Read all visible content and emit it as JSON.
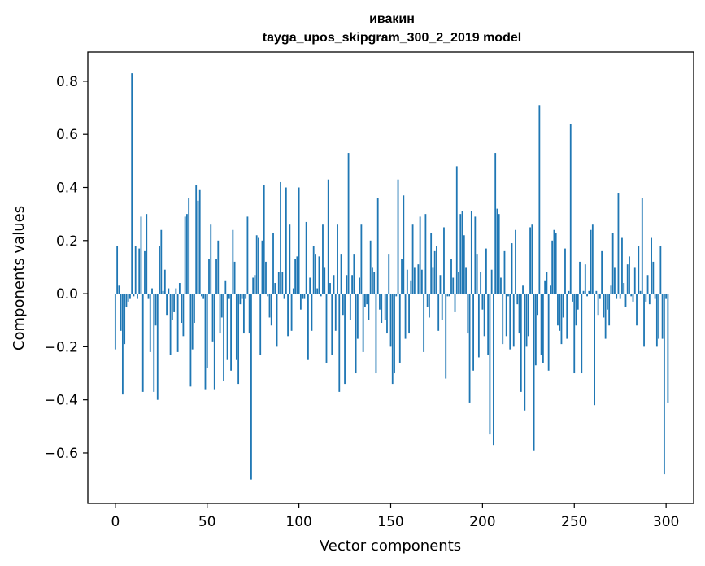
{
  "chart_data": {
    "type": "bar",
    "title": "ивакин",
    "subtitle": "tayga_upos_skipgram_300_2_2019 model",
    "xlabel": "Vector components",
    "ylabel": "Components values",
    "xlim": [
      -15,
      315
    ],
    "ylim": [
      -0.79,
      0.91
    ],
    "xticks": [
      0,
      50,
      100,
      150,
      200,
      250,
      300
    ],
    "xtick_labels": [
      "0",
      "50",
      "100",
      "150",
      "200",
      "250",
      "300"
    ],
    "yticks": [
      -0.6,
      -0.4,
      -0.2,
      0.0,
      0.2,
      0.4,
      0.6,
      0.8
    ],
    "ytick_labels": [
      "−0.6",
      "−0.4",
      "−0.2",
      "0.0",
      "0.2",
      "0.4",
      "0.6",
      "0.8"
    ],
    "bar_color": "#1f77b4",
    "values": [
      -0.21,
      0.18,
      0.03,
      -0.14,
      -0.38,
      -0.19,
      -0.05,
      -0.03,
      -0.02,
      0.83,
      -0.01,
      0.18,
      -0.02,
      0.17,
      0.29,
      -0.37,
      0.16,
      0.3,
      -0.02,
      -0.22,
      0.02,
      -0.37,
      -0.12,
      -0.4,
      0.18,
      0.24,
      0.01,
      0.09,
      -0.08,
      0.02,
      -0.23,
      -0.1,
      -0.07,
      0.02,
      -0.22,
      0.04,
      -0.11,
      -0.16,
      0.29,
      0.3,
      0.36,
      -0.35,
      -0.21,
      -0.11,
      0.41,
      0.35,
      0.39,
      -0.01,
      -0.02,
      -0.36,
      -0.28,
      0.13,
      0.26,
      -0.18,
      -0.36,
      0.13,
      0.2,
      -0.15,
      -0.09,
      -0.33,
      0.05,
      -0.25,
      -0.02,
      -0.29,
      0.24,
      0.12,
      -0.25,
      -0.34,
      -0.04,
      -0.02,
      -0.15,
      -0.02,
      0.29,
      -0.15,
      -0.7,
      0.06,
      0.07,
      0.22,
      0.21,
      -0.23,
      0.2,
      0.41,
      0.12,
      -0.01,
      -0.09,
      -0.12,
      0.23,
      0.04,
      -0.2,
      0.08,
      0.42,
      0.08,
      -0.02,
      0.4,
      -0.16,
      0.26,
      -0.14,
      0.02,
      0.13,
      0.14,
      0.4,
      -0.06,
      -0.02,
      -0.02,
      0.27,
      -0.25,
      0.06,
      -0.14,
      0.18,
      0.15,
      0.02,
      0.14,
      -0.01,
      0.26,
      0.1,
      -0.26,
      0.43,
      0.04,
      -0.23,
      0.07,
      -0.14,
      0.26,
      -0.37,
      0.15,
      -0.08,
      -0.34,
      0.07,
      0.53,
      -0.1,
      0.07,
      0.15,
      -0.3,
      -0.17,
      0.06,
      0.26,
      -0.22,
      -0.05,
      -0.04,
      -0.1,
      0.2,
      0.1,
      0.08,
      -0.3,
      0.36,
      -0.06,
      -0.11,
      0.0,
      -0.1,
      -0.15,
      0.15,
      -0.2,
      -0.34,
      -0.3,
      -0.01,
      0.43,
      -0.26,
      0.13,
      0.37,
      -0.17,
      0.09,
      -0.15,
      0.05,
      0.26,
      0.1,
      0.0,
      0.11,
      0.29,
      0.09,
      -0.22,
      0.3,
      -0.05,
      -0.09,
      0.23,
      0.1,
      0.16,
      0.18,
      -0.14,
      0.07,
      -0.1,
      0.25,
      -0.32,
      -0.01,
      -0.01,
      0.13,
      0.06,
      -0.07,
      0.48,
      0.08,
      0.3,
      0.31,
      0.22,
      0.1,
      -0.15,
      -0.41,
      0.31,
      -0.29,
      0.29,
      0.15,
      -0.24,
      0.08,
      -0.06,
      -0.16,
      0.17,
      -0.23,
      -0.53,
      0.09,
      -0.57,
      0.53,
      0.32,
      0.3,
      0.06,
      -0.19,
      0.16,
      -0.16,
      -0.01,
      -0.21,
      0.19,
      -0.2,
      0.24,
      -0.04,
      -0.15,
      -0.37,
      0.03,
      -0.44,
      -0.2,
      -0.16,
      0.25,
      0.26,
      -0.59,
      -0.27,
      -0.08,
      0.71,
      -0.23,
      -0.26,
      0.05,
      0.08,
      -0.29,
      0.03,
      0.2,
      0.24,
      0.23,
      -0.12,
      -0.14,
      -0.19,
      -0.09,
      0.17,
      -0.17,
      0.01,
      0.64,
      -0.03,
      -0.3,
      -0.12,
      -0.06,
      0.12,
      -0.3,
      0.01,
      0.11,
      -0.01,
      0.01,
      0.24,
      0.26,
      -0.42,
      0.01,
      -0.08,
      -0.02,
      0.16,
      -0.09,
      -0.17,
      -0.06,
      -0.12,
      0.03,
      0.23,
      0.1,
      -0.02,
      0.38,
      -0.02,
      0.21,
      0.04,
      -0.05,
      0.11,
      0.14,
      -0.01,
      -0.03,
      0.1,
      -0.12,
      0.18,
      0.01,
      0.36,
      -0.2,
      -0.03,
      0.07,
      -0.04,
      0.21,
      0.12,
      -0.02,
      -0.2,
      -0.17,
      0.18,
      -0.17,
      -0.68,
      -0.02,
      -0.41
    ]
  }
}
